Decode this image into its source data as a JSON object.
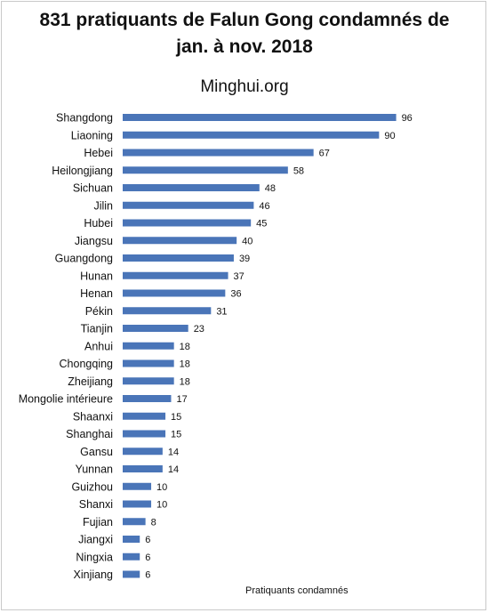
{
  "chart_data": {
    "type": "bar",
    "orientation": "horizontal",
    "title": "831 pratiquants de Falun Gong condamnés de jan. à nov. 2018",
    "subtitle": "Minghui.org",
    "xlabel": "Pratiquants condamnés",
    "bar_color": "#4a75b8",
    "categories": [
      "Shangdong",
      "Liaoning",
      "Hebei",
      "Heilongjiang",
      "Sichuan",
      "Jilin",
      "Hubei",
      "Jiangsu",
      "Guangdong",
      "Hunan",
      "Henan",
      "Pékin",
      "Tianjin",
      "Anhui",
      "Chongqing",
      "Zheijiang",
      "Mongolie intérieure",
      "Shaanxi",
      "Shanghai",
      "Gansu",
      "Yunnan",
      "Guizhou",
      "Shanxi",
      "Fujian",
      "Jiangxi",
      "Ningxia",
      "Xinjiang"
    ],
    "values": [
      96,
      90,
      67,
      58,
      48,
      46,
      45,
      40,
      39,
      37,
      36,
      31,
      23,
      18,
      18,
      18,
      17,
      15,
      15,
      14,
      14,
      10,
      10,
      8,
      6,
      6,
      6
    ],
    "xlim": [
      0,
      100
    ]
  }
}
